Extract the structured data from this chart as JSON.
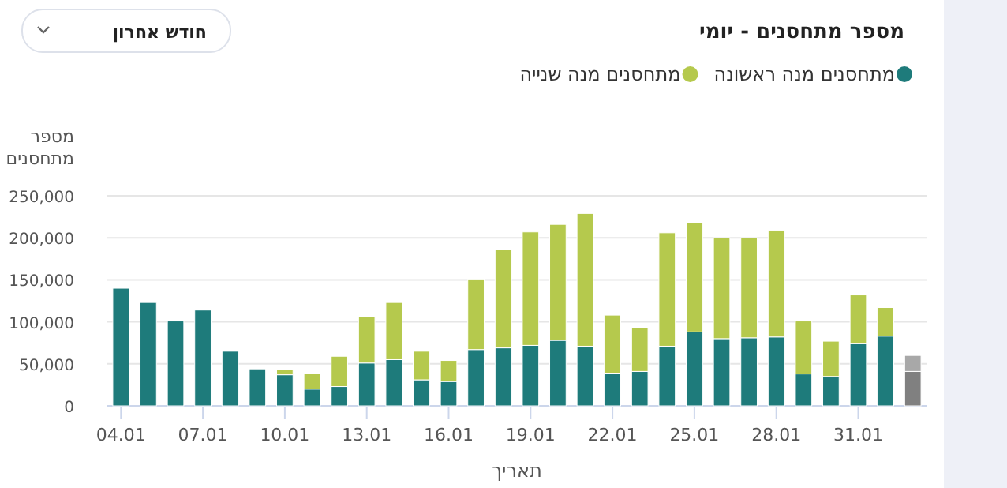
{
  "chart_data": {
    "type": "bar",
    "title": "מספר מתחסנים - יומי",
    "ylabel": "מספר מתחסנים",
    "xlabel": "תאריך",
    "annotations": [
      "חודש אחרון"
    ],
    "categories": [
      "04.01",
      null,
      null,
      "07.01",
      null,
      null,
      "10.01",
      null,
      null,
      "13.01",
      null,
      null,
      "16.01",
      null,
      null,
      "19.01",
      null,
      null,
      "22.01",
      null,
      null,
      "25.01",
      null,
      null,
      "28.01",
      null,
      null,
      "31.01",
      null,
      null
    ],
    "stacked": true,
    "grid": "y",
    "legend": "top right",
    "ylim": [
      0,
      250000
    ],
    "yticks": [
      {
        "value": 0,
        "label": "0"
      },
      {
        "value": 50000,
        "label": "50,000"
      },
      {
        "value": 100000,
        "label": "100,000"
      },
      {
        "value": 150000,
        "label": "150,000"
      },
      {
        "value": 200000,
        "label": "200,000"
      },
      {
        "value": 250000,
        "label": "250,000"
      }
    ],
    "series": [
      {
        "name": "מתחסנים מנה ראשונה",
        "color": "#1e7b7b",
        "colors": [
          "#1e7b7b",
          "#1e7b7b",
          "#1e7b7b",
          "#1e7b7b",
          "#1e7b7b",
          "#1e7b7b",
          "#1e7b7b",
          "#1e7b7b",
          "#1e7b7b",
          "#1e7b7b",
          "#1e7b7b",
          "#1e7b7b",
          "#1e7b7b",
          "#1e7b7b",
          "#1e7b7b",
          "#1e7b7b",
          "#1e7b7b",
          "#1e7b7b",
          "#1e7b7b",
          "#1e7b7b",
          "#1e7b7b",
          "#1e7b7b",
          "#1e7b7b",
          "#1e7b7b",
          "#1e7b7b",
          "#1e7b7b",
          "#1e7b7b",
          "#1e7b7b",
          "#1e7b7b",
          "#808080"
        ],
        "values": [
          140000,
          123000,
          101000,
          114000,
          65000,
          44000,
          37000,
          20000,
          23000,
          51000,
          55000,
          31000,
          29000,
          67000,
          69000,
          72000,
          78000,
          71000,
          39000,
          41000,
          71000,
          88000,
          80000,
          81000,
          82000,
          38000,
          35000,
          74000,
          83000,
          41000
        ]
      },
      {
        "name": "מתחסנים מנה שנייה",
        "color": "#b5c94d",
        "colors": [
          "#b5c94d",
          "#b5c94d",
          "#b5c94d",
          "#b5c94d",
          "#b5c94d",
          "#b5c94d",
          "#b5c94d",
          "#b5c94d",
          "#b5c94d",
          "#b5c94d",
          "#b5c94d",
          "#b5c94d",
          "#b5c94d",
          "#b5c94d",
          "#b5c94d",
          "#b5c94d",
          "#b5c94d",
          "#b5c94d",
          "#b5c94d",
          "#b5c94d",
          "#b5c94d",
          "#b5c94d",
          "#b5c94d",
          "#b5c94d",
          "#b5c94d",
          "#b5c94d",
          "#b5c94d",
          "#b5c94d",
          "#b5c94d",
          "#a8a8a8"
        ],
        "values": [
          0,
          0,
          0,
          0,
          0,
          0,
          6000,
          19000,
          36000,
          55000,
          68000,
          34000,
          25000,
          84000,
          117000,
          135000,
          138000,
          158000,
          69000,
          52000,
          135000,
          130000,
          120000,
          119000,
          127000,
          63000,
          42000,
          58000,
          34000,
          19000
        ]
      }
    ]
  }
}
